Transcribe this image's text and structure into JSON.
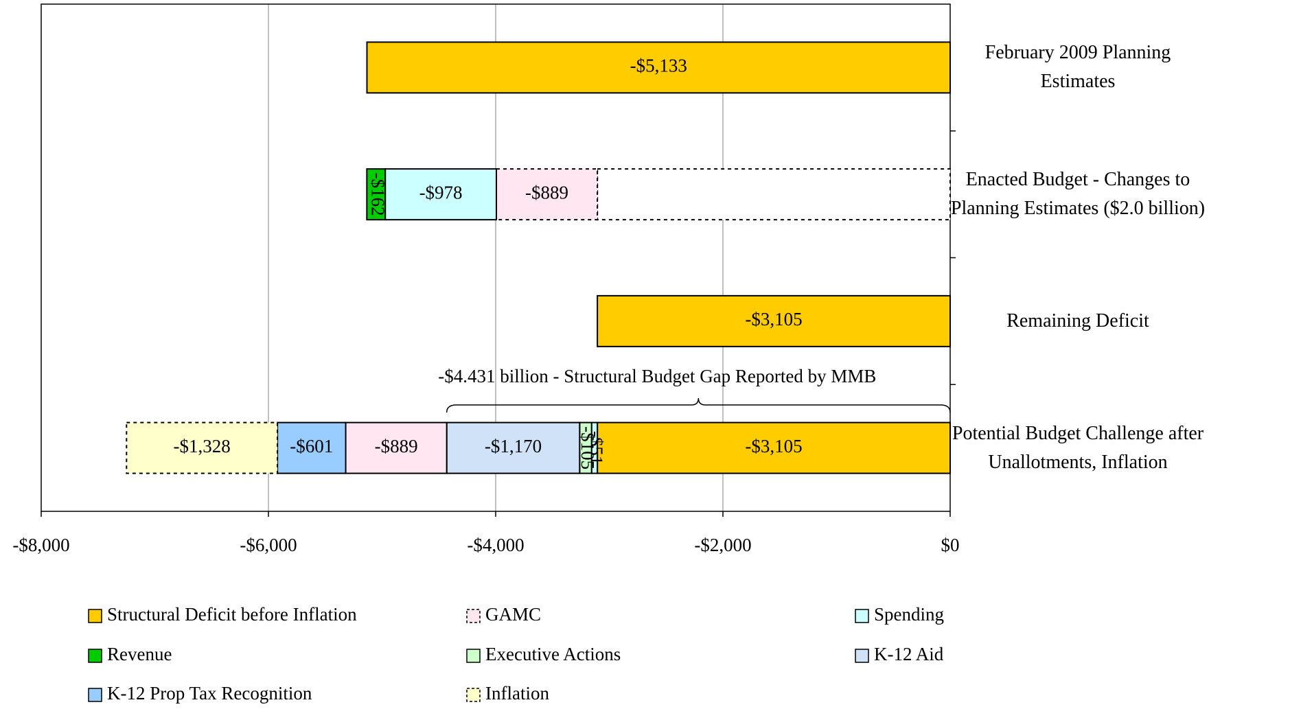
{
  "chart_data": {
    "type": "stacked-bar-horizontal",
    "categories": [
      "February 2009 Planning\nEstimates",
      "Enacted Budget - Changes to\nPlanning Estimates ($2.0 billion)",
      "Remaining Deficit",
      "Potential Budget Challenge after\nUnallotments, Inflation"
    ],
    "series": [
      {
        "name": "Structural Deficit before Inflation",
        "color": "#ffcc00",
        "values": [
          -5133,
          null,
          -3105,
          -3105
        ],
        "value_labels": [
          "-$5,133",
          null,
          "-$3,105",
          "-$3,105"
        ]
      },
      {
        "color": "#ffffff",
        "dashed": true,
        "values": [
          null,
          -3105,
          null,
          null
        ]
      },
      {
        "name": "GAMC",
        "color": "#ffe6f0",
        "dashed": true,
        "values": [
          null,
          -889,
          null,
          null
        ],
        "value_labels": [
          null,
          "-$889",
          null,
          null
        ]
      },
      {
        "name": "Spending",
        "color": "#ccffff",
        "values": [
          null,
          -978,
          null,
          -51
        ],
        "value_labels": [
          null,
          "-$978",
          null,
          "-$51"
        ]
      },
      {
        "name": "Revenue",
        "color": "#00cc00",
        "values": [
          null,
          -162,
          null,
          null
        ],
        "value_labels": [
          null,
          "-$162",
          null,
          null
        ]
      },
      {
        "name": "Executive Actions",
        "color": "#ccffcc",
        "values": [
          null,
          null,
          null,
          -105
        ],
        "value_labels": [
          null,
          null,
          null,
          "-$105"
        ]
      },
      {
        "name": "K-12 Aid",
        "color": "#cfe2f8",
        "values": [
          null,
          null,
          null,
          -1170
        ],
        "value_labels": [
          null,
          null,
          null,
          "-$1,170"
        ]
      },
      {
        "color": "#ffe6f0",
        "values": [
          null,
          null,
          null,
          -889
        ],
        "value_labels": [
          null,
          null,
          null,
          "-$889"
        ]
      },
      {
        "name": "K-12 Prop Tax Recognition",
        "color": "#99ccff",
        "values": [
          null,
          null,
          null,
          -601
        ],
        "value_labels": [
          null,
          null,
          null,
          "-$601"
        ]
      },
      {
        "name": "Inflation",
        "color": "#ffffcc",
        "dashed": true,
        "values": [
          null,
          null,
          null,
          -1328
        ],
        "value_labels": [
          null,
          null,
          null,
          "-$1,328"
        ]
      }
    ],
    "xlim": [
      -8000,
      0
    ],
    "xticks": [
      {
        "value": -8000,
        "label": "-$8,000"
      },
      {
        "value": -6000,
        "label": "-$6,000"
      },
      {
        "value": -4000,
        "label": "-$4,000"
      },
      {
        "value": -2000,
        "label": "-$2,000"
      },
      {
        "value": 0,
        "label": "$0"
      }
    ],
    "grid": true,
    "annotation": {
      "text": "-$4.431 billion - Structural Budget Gap Reported by MMB",
      "from": -4431,
      "to": 0
    }
  }
}
